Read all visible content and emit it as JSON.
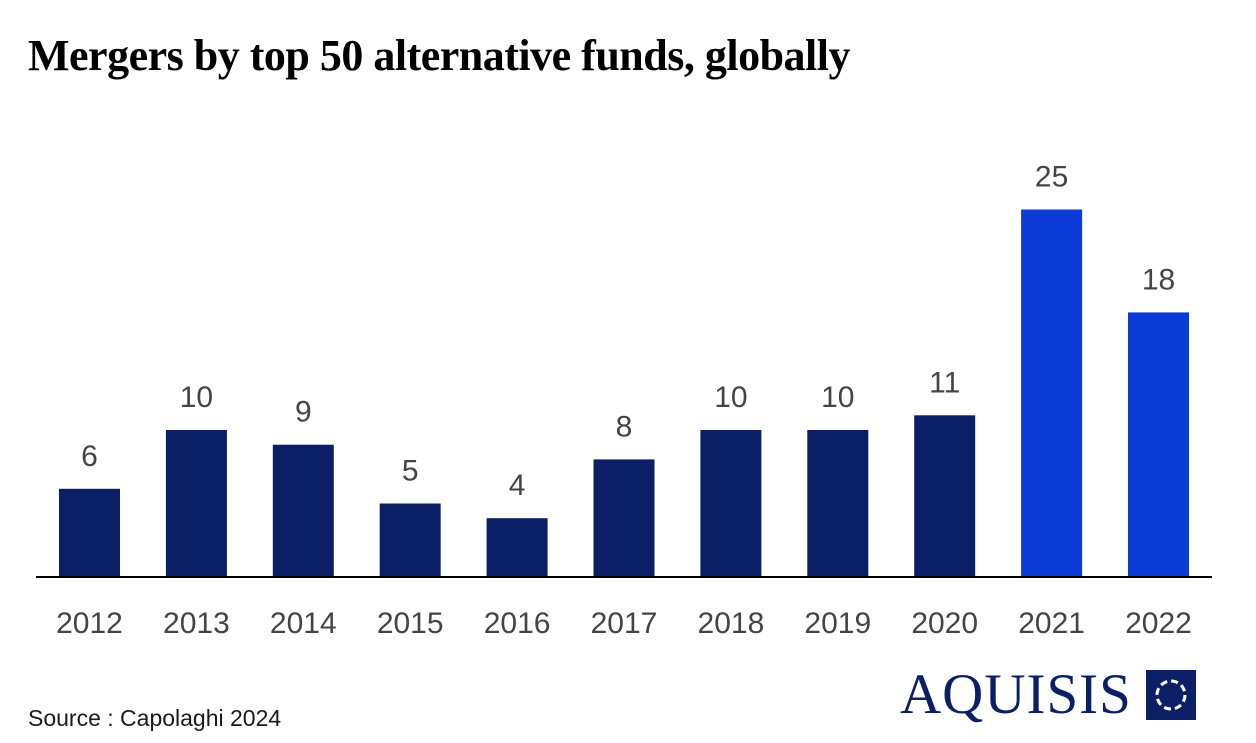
{
  "chart_data": {
    "type": "bar",
    "title": "Mergers by top 50 alternative funds, globally",
    "categories": [
      "2012",
      "2013",
      "2014",
      "2015",
      "2016",
      "2017",
      "2018",
      "2019",
      "2020",
      "2021",
      "2022"
    ],
    "values": [
      6,
      10,
      9,
      5,
      4,
      8,
      10,
      10,
      11,
      25,
      18
    ],
    "xlabel": "",
    "ylabel": "",
    "ylim": [
      0,
      25
    ],
    "grid": false,
    "data_labels": true,
    "highlighted_categories": [
      "2021",
      "2022"
    ],
    "colors": {
      "bar": "#0a1f66",
      "highlight": "#0b3bd6",
      "axis": "#000000",
      "label": "#444444"
    }
  },
  "footer": {
    "source": "Source : Capolaghi 2024"
  },
  "brand": {
    "name": "AQUISIS",
    "color": "#0a1f66"
  }
}
